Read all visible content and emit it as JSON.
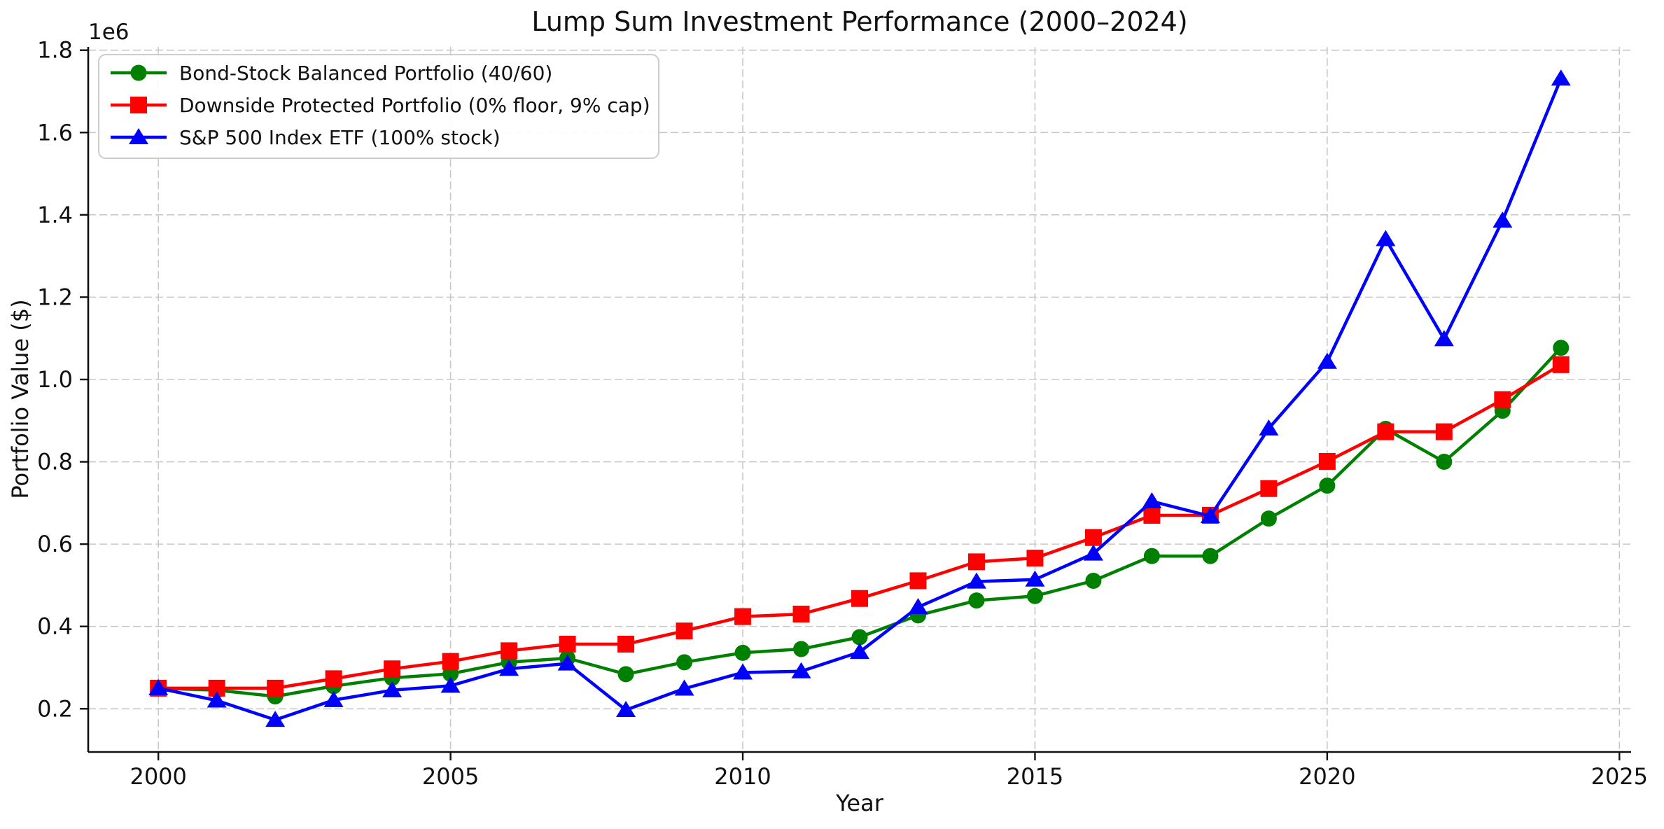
{
  "chart_data": {
    "type": "line",
    "title": "Lump Sum Investment Performance (2000–2024)",
    "xlabel": "Year",
    "ylabel": "Portfolio Value ($)",
    "y_offset_text": "1e6",
    "grid": true,
    "legend_position": "upper left",
    "x": [
      2000,
      2001,
      2002,
      2003,
      2004,
      2005,
      2006,
      2007,
      2008,
      2009,
      2010,
      2011,
      2012,
      2013,
      2014,
      2015,
      2016,
      2017,
      2018,
      2019,
      2020,
      2021,
      2022,
      2023,
      2024
    ],
    "series": [
      {
        "id": "balanced",
        "name": "Bond-Stock Balanced Portfolio (40/60)",
        "color": "#008000",
        "marker": "circle",
        "values": [
          250000,
          245000,
          230000,
          255000,
          275000,
          285000,
          313000,
          323000,
          284000,
          313000,
          336000,
          345000,
          374000,
          427000,
          463000,
          474000,
          511000,
          571000,
          571000,
          662000,
          742000,
          880000,
          800000,
          924000,
          1077000
        ]
      },
      {
        "id": "protected",
        "name": "Downside Protected Portfolio (0% floor, 9% cap)",
        "color": "#ff0000",
        "marker": "square",
        "values": [
          250000,
          250000,
          250000,
          273000,
          297000,
          315000,
          341000,
          357000,
          357000,
          389000,
          424000,
          430000,
          468000,
          511000,
          557000,
          566000,
          616000,
          670000,
          670000,
          735000,
          801000,
          873000,
          873000,
          951000,
          1036000
        ]
      },
      {
        "id": "sp500",
        "name": "S&P 500 Index ETF (100% stock)",
        "color": "#0000ff",
        "marker": "triangle",
        "values": [
          250000,
          220000,
          173000,
          221000,
          245000,
          256000,
          297000,
          310000,
          197000,
          249000,
          288000,
          291000,
          338000,
          447000,
          509000,
          514000,
          577000,
          704000,
          668000,
          881000,
          1043000,
          1341000,
          1098000,
          1386000,
          1731000
        ]
      }
    ],
    "xticks": [
      2000,
      2005,
      2010,
      2015,
      2020,
      2025
    ],
    "xtick_labels": [
      "2000",
      "2005",
      "2010",
      "2015",
      "2020",
      "2025"
    ],
    "yticks": [
      200000,
      400000,
      600000,
      800000,
      1000000,
      1200000,
      1400000,
      1600000,
      1800000
    ],
    "ytick_labels": [
      "0.2",
      "0.4",
      "0.6",
      "0.8",
      "1.0",
      "1.2",
      "1.4",
      "1.6",
      "1.8"
    ],
    "xlim": [
      1998.8,
      2025.2
    ],
    "ylim": [
      95000,
      1808000
    ],
    "colors": {
      "grid": "#c9c9c9",
      "spine": "#111111",
      "text": "#111111",
      "legend_border": "#cccccc",
      "legend_bg": "#ffffff"
    }
  }
}
